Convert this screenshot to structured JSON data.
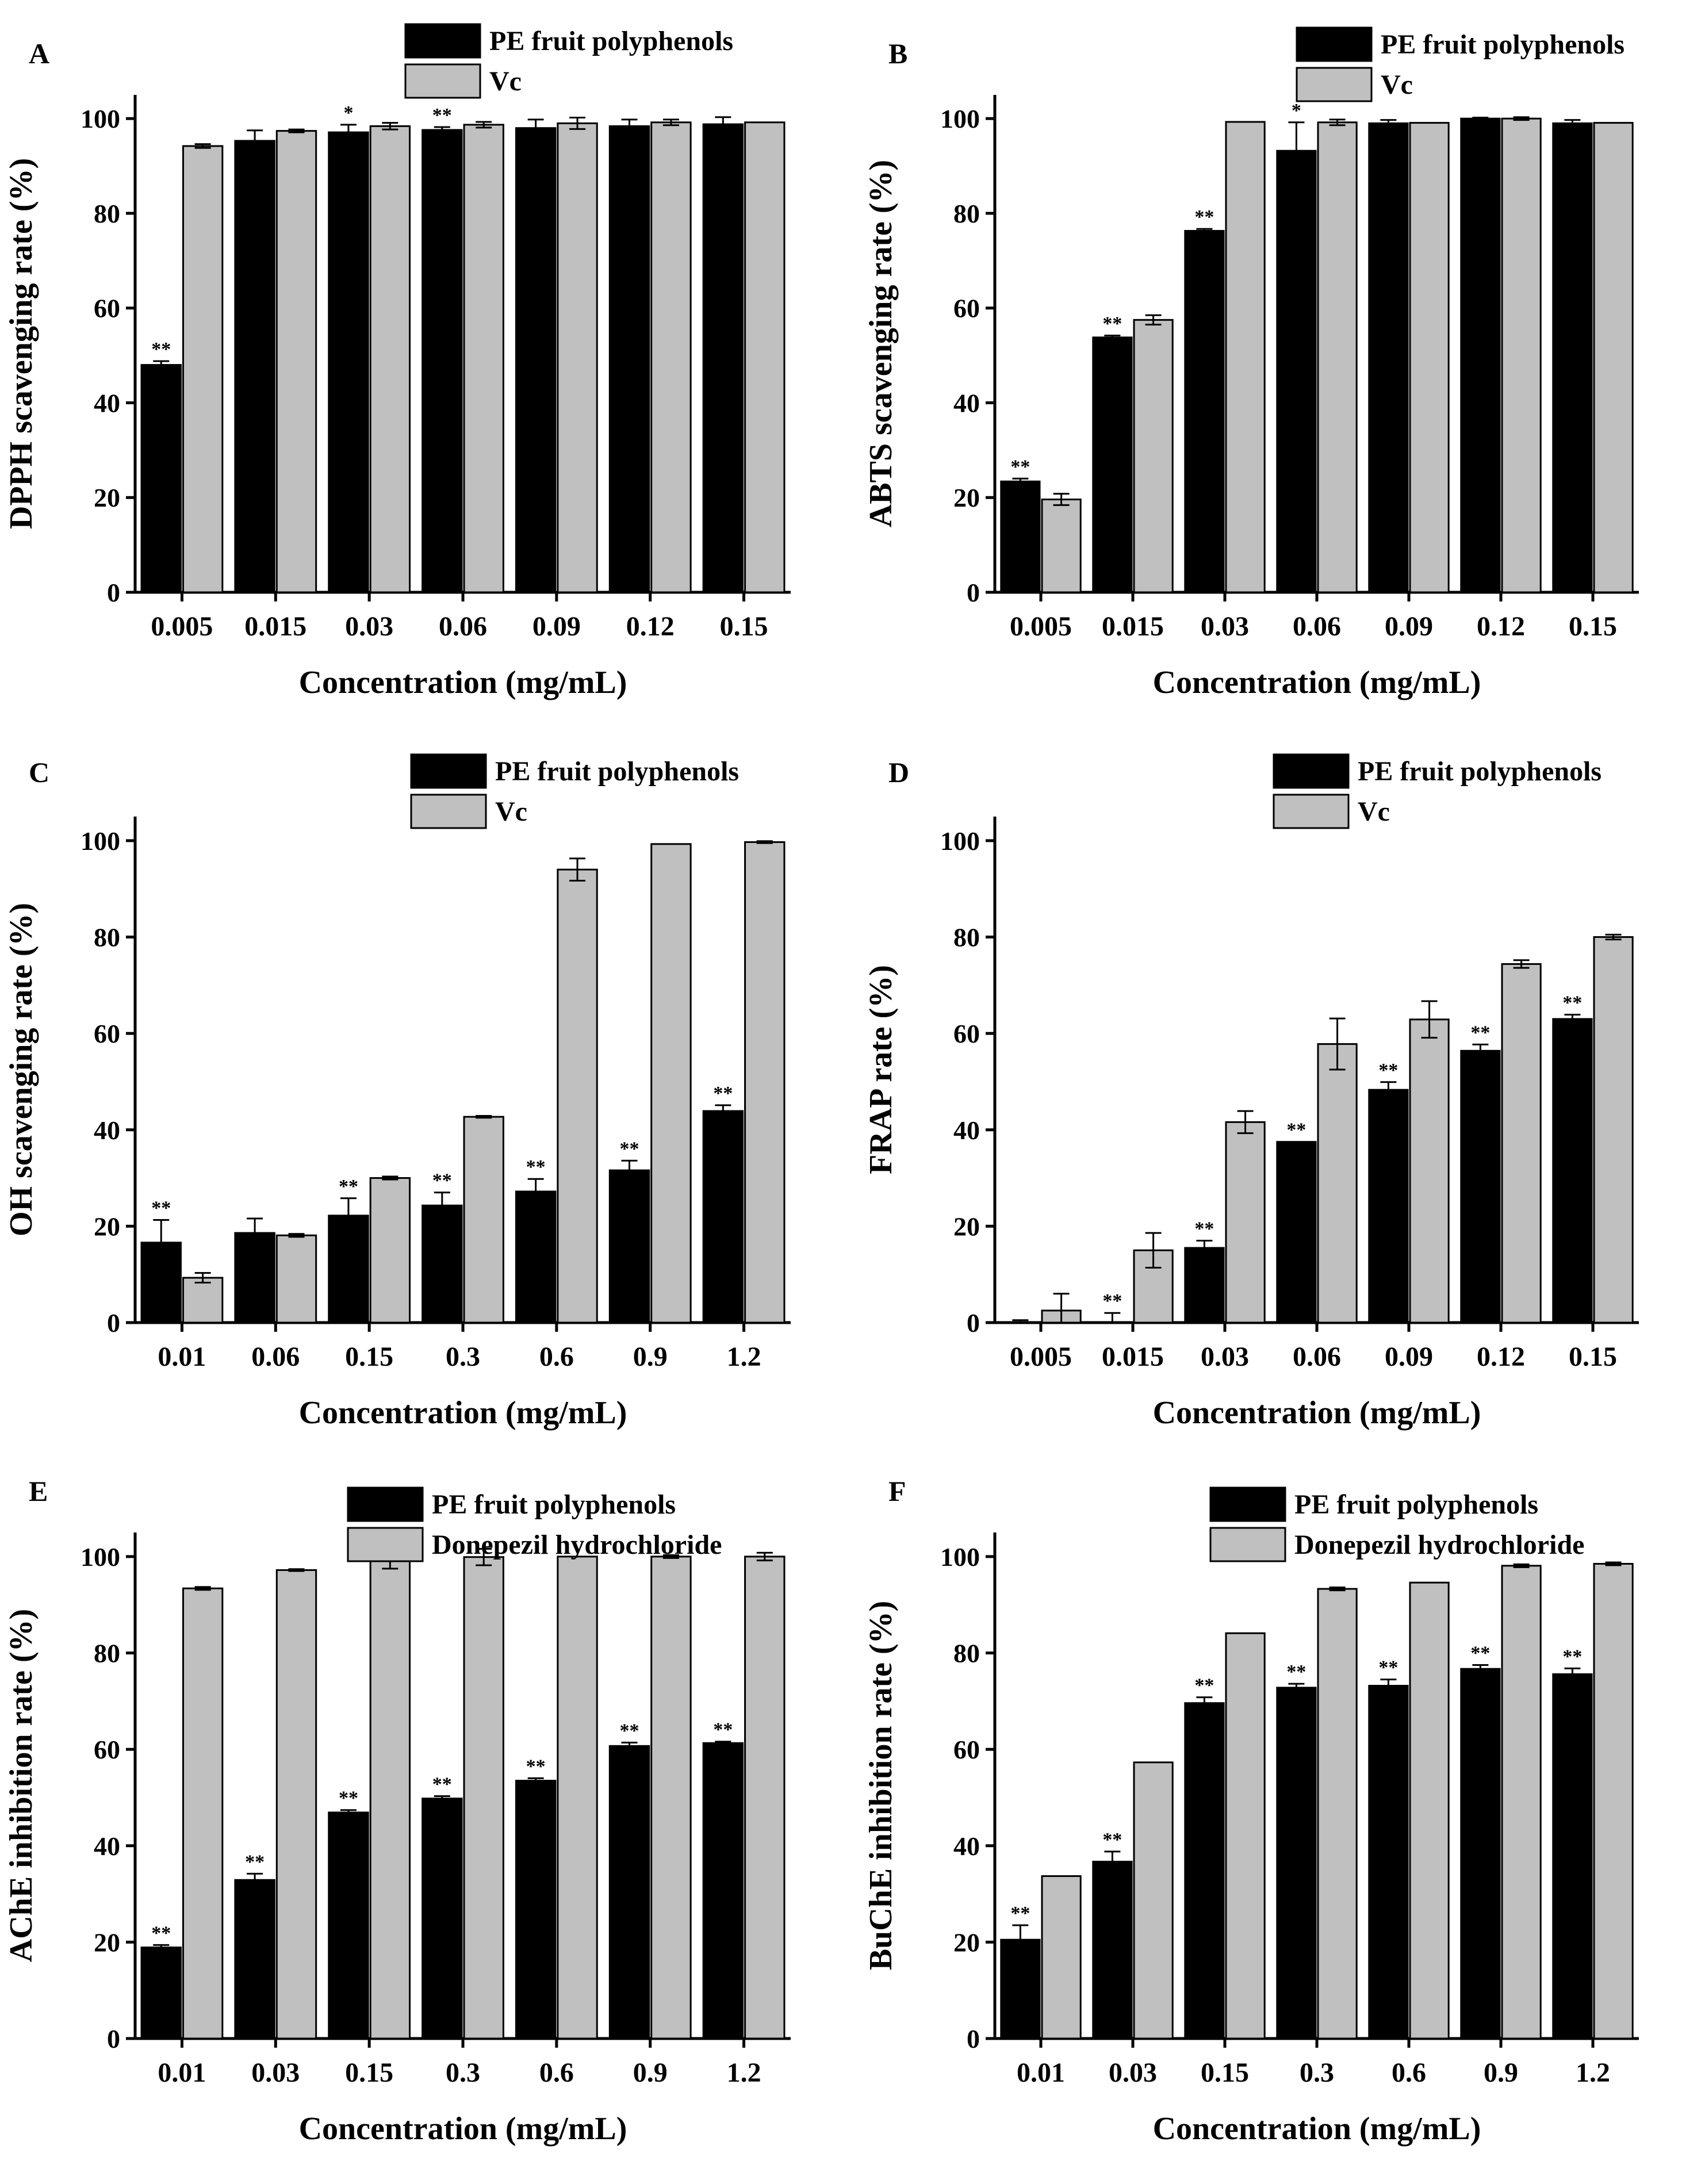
{
  "figure": {
    "colors": {
      "pe": "#000000",
      "ref": "#c0c0c0",
      "axis": "#000000"
    }
  },
  "chart_data": [
    {
      "type": "bar",
      "panel": "A",
      "xlabel": "Concentration (mg/mL)",
      "ylabel": "DPPH scavenging rate (%)",
      "ylim": [
        0,
        105
      ],
      "yticks": [
        0,
        20,
        40,
        60,
        80,
        100
      ],
      "legend_position": "top-right",
      "categories": [
        "0.005",
        "0.015",
        "0.03",
        "0.06",
        "0.09",
        "0.12",
        "0.15"
      ],
      "series": [
        {
          "name": "PE fruit polyphenols",
          "values": [
            48.0,
            95.3,
            97.1,
            97.6,
            98.0,
            98.4,
            98.8
          ],
          "errors": [
            0.8,
            2.2,
            1.6,
            0.6,
            1.8,
            1.4,
            1.5
          ],
          "annotations": [
            "**",
            "",
            "*",
            "**",
            "",
            "",
            ""
          ]
        },
        {
          "name": "Vc",
          "values": [
            94.2,
            97.4,
            98.4,
            98.7,
            99.0,
            99.2,
            99.2
          ],
          "errors": [
            0.4,
            0.3,
            0.7,
            0.6,
            1.2,
            0.6,
            0.0
          ],
          "annotations": [
            "",
            "",
            "",
            "",
            "",
            "",
            ""
          ]
        }
      ]
    },
    {
      "type": "bar",
      "panel": "B",
      "xlabel": "Concentration (mg/mL)",
      "ylabel": "ABTS scavenging rate (%)",
      "ylim": [
        0,
        105
      ],
      "yticks": [
        0,
        20,
        40,
        60,
        80,
        100
      ],
      "legend_position": "top-right",
      "categories": [
        "0.005",
        "0.015",
        "0.03",
        "0.06",
        "0.09",
        "0.12",
        "0.15"
      ],
      "series": [
        {
          "name": "PE fruit polyphenols",
          "values": [
            23.4,
            53.8,
            76.3,
            93.2,
            99.0,
            100.0,
            99.0
          ],
          "errors": [
            0.6,
            0.4,
            0.4,
            6.0,
            0.7,
            0.2,
            0.7
          ],
          "annotations": [
            "**",
            "**",
            "**",
            "*",
            "",
            "",
            ""
          ]
        },
        {
          "name": "Vc",
          "values": [
            19.6,
            57.5,
            99.3,
            99.2,
            99.1,
            100.0,
            99.1
          ],
          "errors": [
            1.2,
            1.0,
            0.0,
            0.6,
            0.0,
            0.3,
            0.0
          ],
          "annotations": [
            "",
            "",
            "",
            "",
            "",
            "",
            ""
          ]
        }
      ]
    },
    {
      "type": "bar",
      "panel": "C",
      "xlabel": "Concentration (mg/mL)",
      "ylabel": "OH scavenging rate (%)",
      "ylim": [
        0,
        105
      ],
      "yticks": [
        0,
        20,
        40,
        60,
        80,
        100
      ],
      "legend_position": "top-right",
      "categories": [
        "0.01",
        "0.06",
        "0.15",
        "0.3",
        "0.6",
        "0.9",
        "1.2"
      ],
      "series": [
        {
          "name": "PE fruit polyphenols",
          "values": [
            16.6,
            18.6,
            22.2,
            24.3,
            27.2,
            31.6,
            43.9
          ],
          "errors": [
            4.7,
            3.0,
            3.6,
            2.7,
            2.6,
            2.0,
            1.2
          ],
          "annotations": [
            "**",
            "",
            "**",
            "**",
            "**",
            "**",
            "**"
          ]
        },
        {
          "name": "Vc",
          "values": [
            9.3,
            18.1,
            30.0,
            42.7,
            94.0,
            99.3,
            99.7
          ],
          "errors": [
            1.0,
            0.3,
            0.3,
            0.2,
            2.3,
            0.0,
            0.2
          ],
          "annotations": [
            "",
            "",
            "",
            "",
            "",
            "",
            ""
          ]
        }
      ]
    },
    {
      "type": "bar",
      "panel": "D",
      "xlabel": "Concentration (mg/mL)",
      "ylabel": "FRAP rate (%)",
      "ylim": [
        0,
        105
      ],
      "yticks": [
        0,
        20,
        40,
        60,
        80,
        100
      ],
      "legend_position": "top-right",
      "categories": [
        "0.005",
        "0.015",
        "0.03",
        "0.06",
        "0.09",
        "0.12",
        "0.15"
      ],
      "series": [
        {
          "name": "PE fruit polyphenols",
          "values": [
            0.0,
            0.0,
            15.5,
            37.5,
            48.3,
            56.4,
            63.0
          ],
          "errors": [
            0.5,
            2.0,
            1.5,
            0.0,
            1.6,
            1.3,
            0.9
          ],
          "annotations": [
            "",
            "**",
            "**",
            "**",
            "**",
            "**",
            "**"
          ]
        },
        {
          "name": "Vc",
          "values": [
            2.5,
            15.0,
            41.6,
            57.8,
            62.9,
            74.4,
            80.0
          ],
          "errors": [
            3.5,
            3.6,
            2.3,
            5.3,
            3.8,
            0.8,
            0.5
          ],
          "annotations": [
            "",
            "",
            "",
            "",
            "",
            "",
            ""
          ]
        }
      ]
    },
    {
      "type": "bar",
      "panel": "E",
      "xlabel": "Concentration (mg/mL)",
      "ylabel": "AChE inhibition rate (%)",
      "ylim": [
        0,
        105
      ],
      "yticks": [
        0,
        20,
        40,
        60,
        80,
        100
      ],
      "legend_position": "top-right",
      "categories": [
        "0.01",
        "0.03",
        "0.15",
        "0.3",
        "0.6",
        "0.9",
        "1.2"
      ],
      "series": [
        {
          "name": "PE fruit polyphenols",
          "values": [
            18.9,
            32.9,
            46.9,
            49.8,
            53.5,
            60.7,
            61.3
          ],
          "errors": [
            0.5,
            1.3,
            0.5,
            0.5,
            0.5,
            0.7,
            0.3
          ],
          "annotations": [
            "**",
            "**",
            "**",
            "**",
            "**",
            "**",
            "**"
          ]
        },
        {
          "name": "Donepezil  hydrochloride",
          "values": [
            93.4,
            97.2,
            99.6,
            99.9,
            100.0,
            100.0,
            100.0
          ],
          "errors": [
            0.3,
            0.2,
            2.1,
            1.7,
            0.0,
            0.3,
            0.8
          ],
          "annotations": [
            "",
            "",
            "",
            "",
            "",
            "",
            ""
          ]
        }
      ]
    },
    {
      "type": "bar",
      "panel": "F",
      "xlabel": "Concentration (mg/mL)",
      "ylabel": "BuChE inhibition rate (%)",
      "ylim": [
        0,
        105
      ],
      "yticks": [
        0,
        20,
        40,
        60,
        80,
        100
      ],
      "legend_position": "top-right",
      "categories": [
        "0.01",
        "0.03",
        "0.15",
        "0.3",
        "0.6",
        "0.9",
        "1.2"
      ],
      "series": [
        {
          "name": "PE fruit polyphenols",
          "values": [
            20.5,
            36.7,
            69.6,
            72.8,
            73.2,
            76.7,
            75.6
          ],
          "errors": [
            3.0,
            2.1,
            1.2,
            0.8,
            1.3,
            0.8,
            1.2
          ],
          "annotations": [
            "**",
            "**",
            "**",
            "**",
            "**",
            "**",
            "**"
          ]
        },
        {
          "name": "Donepezil  hydrochloride",
          "values": [
            33.7,
            57.3,
            84.1,
            93.3,
            94.6,
            98.1,
            98.5
          ],
          "errors": [
            0.0,
            0.0,
            0.0,
            0.3,
            0.0,
            0.3,
            0.3
          ],
          "annotations": [
            "",
            "",
            "",
            "",
            "",
            "",
            ""
          ]
        }
      ]
    }
  ]
}
